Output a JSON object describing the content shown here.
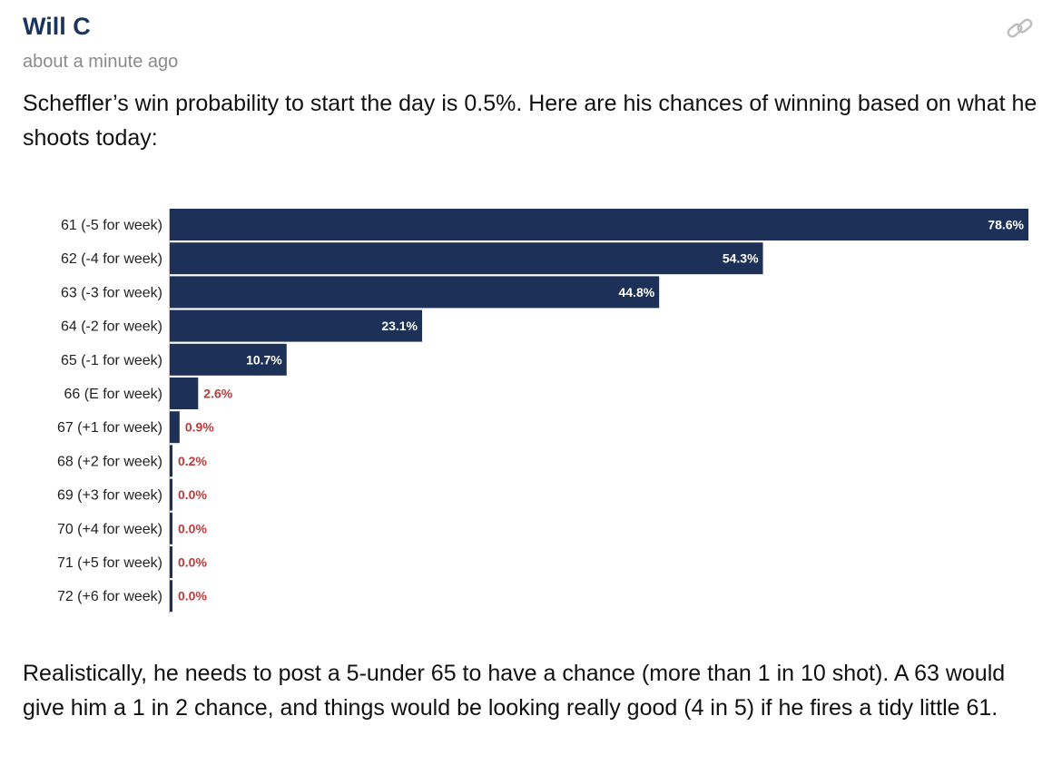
{
  "post": {
    "author": "Will C",
    "timestamp": "about a minute ago",
    "intro": "Scheffler’s win probability to start the day is 0.5%. Here are his chances of winning based on what he shoots today:",
    "outro": "Realistically, he needs to post a 5-under 65 to have a chance (more than 1 in 10 shot). A 63 would give him a 1 in 2 chance, and things would be looking really good (4 in 5) if he fires a tidy little 61.",
    "link_icon": "link-icon"
  },
  "colors": {
    "bar": "#1d3158",
    "label_outside": "#c0393b",
    "label_inside": "#ffffff",
    "author": "#1b355e",
    "timestamp": "#8a8a8a"
  },
  "chart_data": {
    "type": "bar",
    "orientation": "horizontal",
    "categories": [
      "61 (-5 for week)",
      "62 (-4 for week)",
      "63 (-3 for week)",
      "64 (-2 for week)",
      "65 (-1 for week)",
      "66 (E for week)",
      "67 (+1 for week)",
      "68 (+2 for week)",
      "69 (+3 for week)",
      "70 (+4 for week)",
      "71 (+5 for week)",
      "72 (+6 for week)"
    ],
    "values": [
      78.6,
      54.3,
      44.8,
      23.1,
      10.7,
      2.6,
      0.9,
      0.2,
      0.0,
      0.0,
      0.0,
      0.0
    ],
    "value_labels": [
      "78.6%",
      "54.3%",
      "44.8%",
      "23.1%",
      "10.7%",
      "2.6%",
      "0.9%",
      "0.2%",
      "0.0%",
      "0.0%",
      "0.0%",
      "0.0%"
    ],
    "xlim": [
      0,
      78.6
    ],
    "grid": false,
    "title": "",
    "xlabel": "",
    "ylabel": ""
  }
}
